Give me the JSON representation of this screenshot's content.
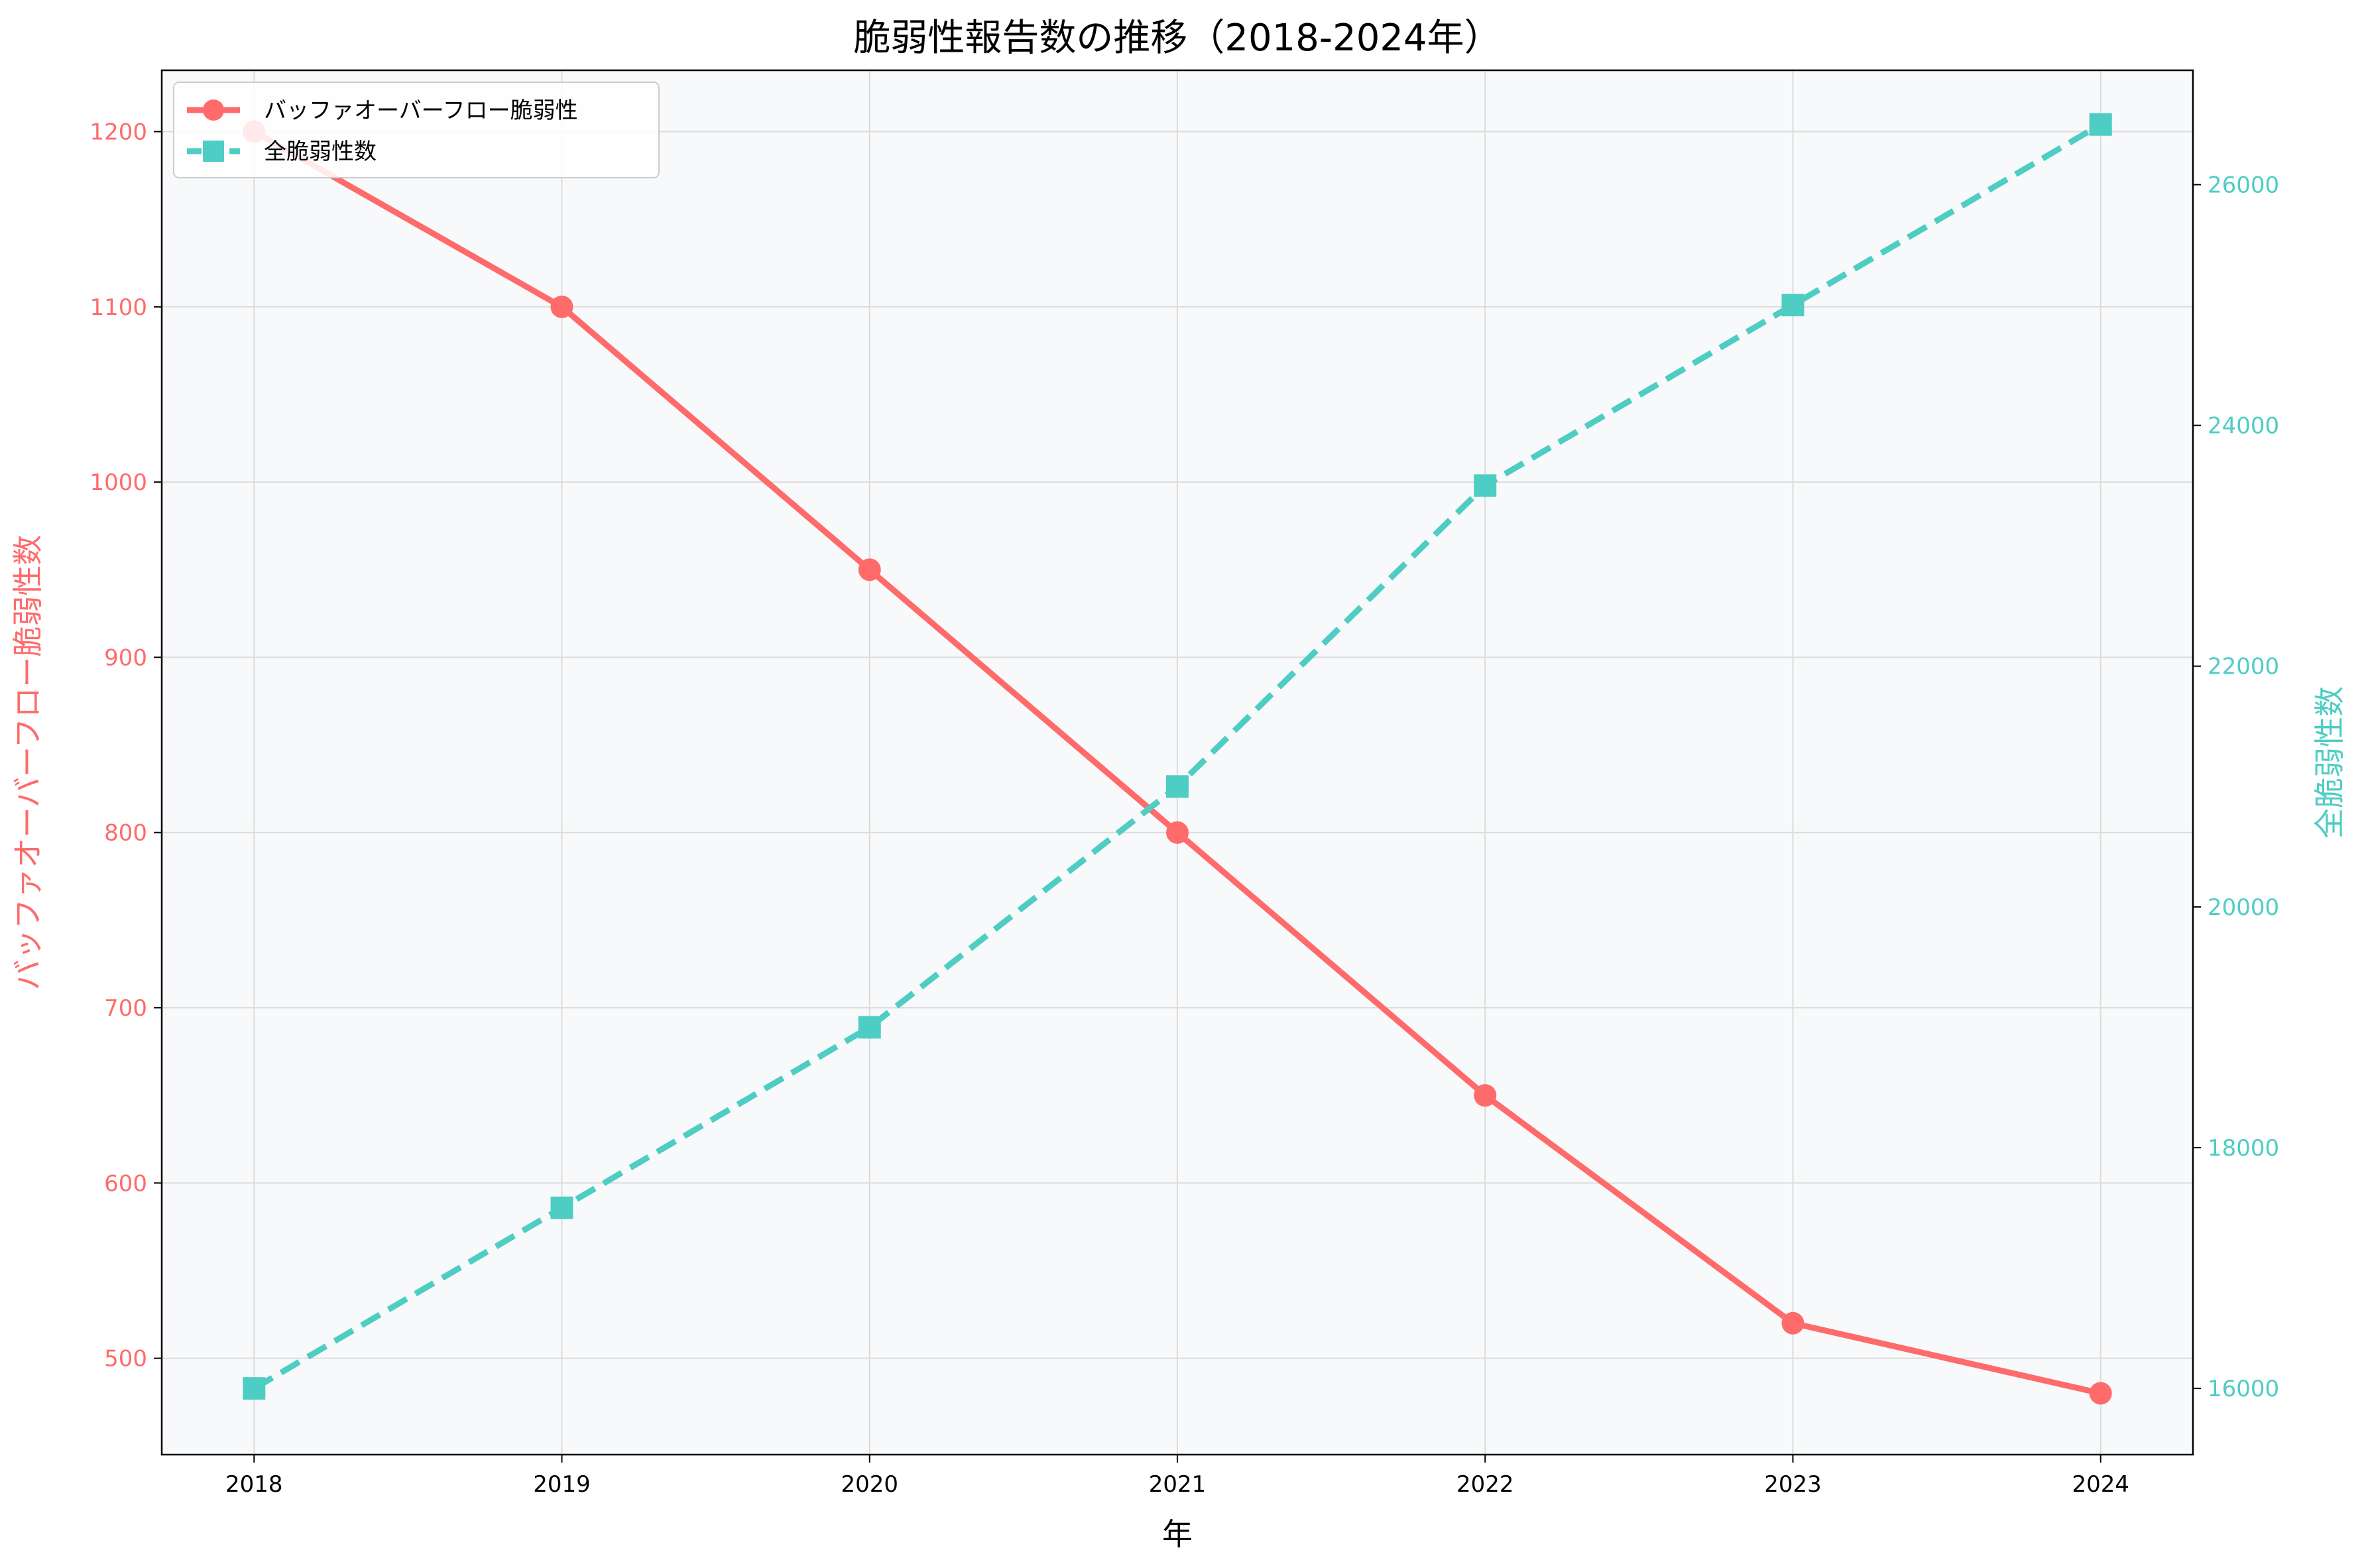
{
  "chart_data": {
    "type": "line",
    "title": "脆弱性報告数の推移（2018-2024年）",
    "xlabel": "年",
    "ylabel_left": "バッファオーバーフロー脆弱性数",
    "ylabel_right": "全脆弱性数",
    "x": [
      2018,
      2019,
      2020,
      2021,
      2022,
      2023,
      2024
    ],
    "x_tick_labels": [
      "2018",
      "2019",
      "2020",
      "2021",
      "2022",
      "2023",
      "2024"
    ],
    "xlim": [
      2017.7,
      2024.3
    ],
    "ylim_left": [
      445,
      1235
    ],
    "ylim_right": [
      15450,
      26950
    ],
    "y_left_ticks": [
      500,
      600,
      700,
      800,
      900,
      1000,
      1100,
      1200
    ],
    "y_right_ticks": [
      16000,
      18000,
      20000,
      22000,
      24000,
      26000
    ],
    "y_left_tick_labels": [
      "500",
      "600",
      "700",
      "800",
      "900",
      "1000",
      "1100",
      "1200"
    ],
    "y_right_tick_labels": [
      "16000",
      "18000",
      "20000",
      "22000",
      "24000",
      "26000"
    ],
    "grid": true,
    "legend_position": "top-left",
    "series": [
      {
        "name": "バッファオーバーフロー脆弱性",
        "axis": "left",
        "values": [
          1200,
          1100,
          950,
          800,
          650,
          520,
          480
        ],
        "color": "#ff6b6b",
        "line_style": "solid",
        "marker": "circle"
      },
      {
        "name": "全脆弱性数",
        "axis": "right",
        "values": [
          16000,
          17500,
          19000,
          21000,
          23500,
          25000,
          26500
        ],
        "color": "#4ecdc4",
        "line_style": "dashed",
        "marker": "square"
      }
    ]
  },
  "colors": {
    "plot_background": "#f8f9fa",
    "grid": "#dcdcdc",
    "axis": "#000000"
  }
}
